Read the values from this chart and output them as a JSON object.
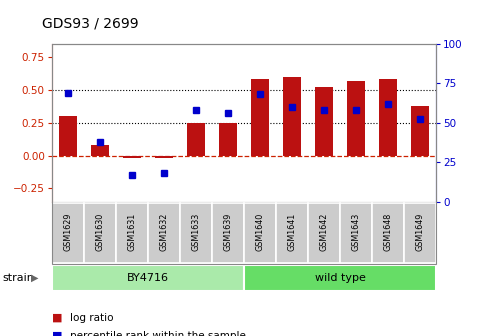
{
  "title": "GDS93 / 2699",
  "samples": [
    "GSM1629",
    "GSM1630",
    "GSM1631",
    "GSM1632",
    "GSM1633",
    "GSM1639",
    "GSM1640",
    "GSM1641",
    "GSM1642",
    "GSM1643",
    "GSM1648",
    "GSM1649"
  ],
  "log_ratio": [
    0.3,
    0.08,
    -0.02,
    -0.02,
    0.25,
    0.25,
    0.58,
    0.6,
    0.52,
    0.57,
    0.58,
    0.38
  ],
  "percentile_rank": [
    69,
    38,
    17,
    18,
    58,
    56,
    68,
    60,
    58,
    58,
    62,
    52
  ],
  "bar_color": "#BB1111",
  "dot_color": "#0000CC",
  "ylim_left": [
    -0.35,
    0.85
  ],
  "ylim_right": [
    0,
    100
  ],
  "yticks_left": [
    -0.25,
    0.0,
    0.25,
    0.5,
    0.75
  ],
  "yticks_right": [
    0,
    25,
    50,
    75,
    100
  ],
  "hlines_dotted": [
    0.25,
    0.5
  ],
  "hline_zero": 0.0,
  "strain_groups": [
    {
      "label": "BY4716",
      "start": 0,
      "end": 6,
      "color": "#AAEAAA"
    },
    {
      "label": "wild type",
      "start": 6,
      "end": 12,
      "color": "#66DD66"
    }
  ],
  "strain_label": "strain",
  "legend_entries": [
    {
      "color": "#BB1111",
      "label": "log ratio"
    },
    {
      "color": "#0000CC",
      "label": "percentile rank within the sample"
    }
  ],
  "bg_color": "#FFFFFF",
  "tick_label_color_left": "#CC2200",
  "tick_label_color_right": "#0000CC",
  "zero_line_color": "#CC2200",
  "sample_bg_color": "#CCCCCC",
  "border_color": "#888888"
}
